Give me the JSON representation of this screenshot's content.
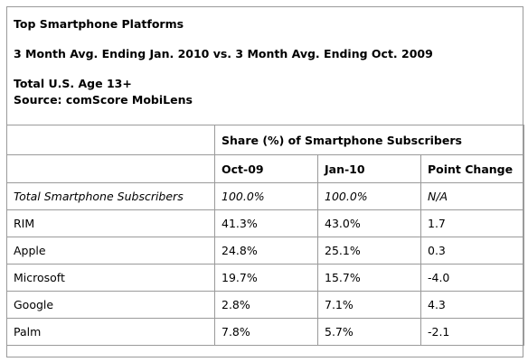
{
  "header": {
    "title": "Top Smartphone Platforms",
    "subtitle": "3 Month Avg. Ending Jan. 2010 vs. 3 Month Avg. Ending Oct. 2009",
    "audience": "Total U.S. Age 13+",
    "source": "Source: comScore MobiLens"
  },
  "table": {
    "group_header": "Share (%) of Smartphone Subscribers",
    "columns": [
      "Oct-09",
      "Jan-10",
      "Point Change"
    ],
    "rows": [
      {
        "label": "Total Smartphone Subscribers",
        "values": [
          "100.0%",
          "100.0%",
          "N/A"
        ]
      },
      {
        "label": "RIM",
        "values": [
          "41.3%",
          "43.0%",
          "1.7"
        ]
      },
      {
        "label": "Apple",
        "values": [
          "24.8%",
          "25.1%",
          "0.3"
        ]
      },
      {
        "label": "Microsoft",
        "values": [
          "19.7%",
          "15.7%",
          "-4.0"
        ]
      },
      {
        "label": "Google",
        "values": [
          "2.8%",
          "7.1%",
          "4.3"
        ]
      },
      {
        "label": "Palm",
        "values": [
          "7.8%",
          "5.7%",
          "-2.1"
        ]
      }
    ]
  }
}
